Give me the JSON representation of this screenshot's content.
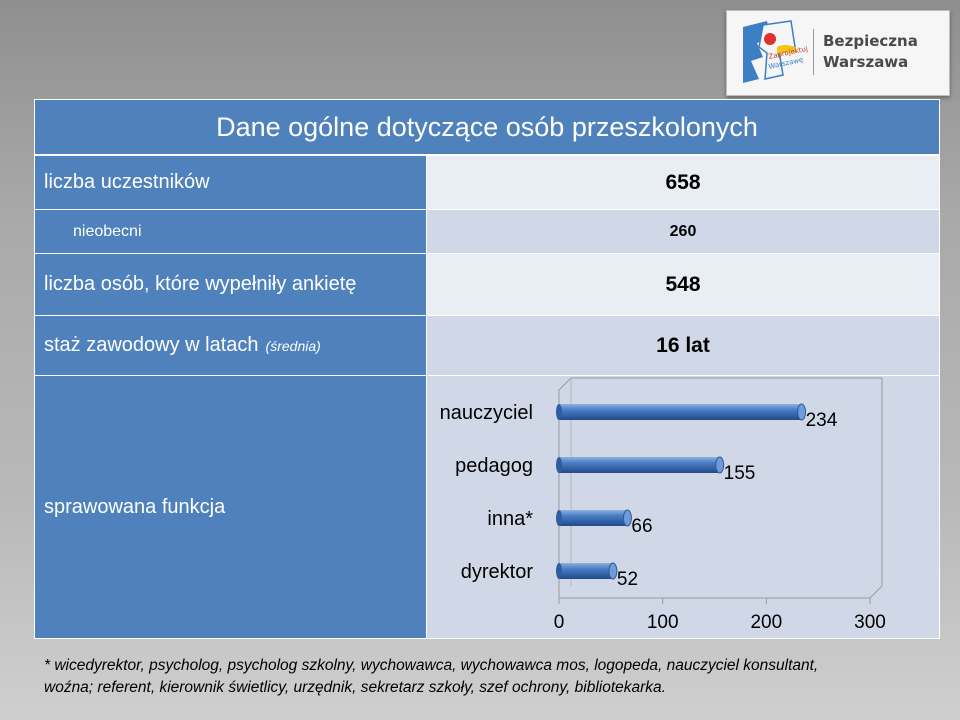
{
  "logo": {
    "line1": "Bezpieczna",
    "line2": "Warszawa",
    "mark_text": "Zaprojektuj Warszawę"
  },
  "title": "Dane ogólne dotyczące osób przeszkolonych",
  "rows": [
    {
      "label": "liczba uczestników",
      "value": "658"
    },
    {
      "label": "nieobecni",
      "value": "260"
    },
    {
      "label": "liczba osób, które wypełniły ankietę",
      "value": "548"
    },
    {
      "label": "staż zawodowy w latach",
      "label_note": "(średnia)",
      "value": "16 lat"
    }
  ],
  "function_label": "sprawowana funkcja",
  "chart_data": {
    "type": "bar",
    "orientation": "horizontal",
    "style": "3d-cylinder",
    "categories": [
      "nauczyciel",
      "pedagog",
      "inna*",
      "dyrektor"
    ],
    "values": [
      234,
      155,
      66,
      52
    ],
    "xlim": [
      0,
      300
    ],
    "x_ticks": [
      "0",
      "100",
      "200",
      "300"
    ],
    "bar_color": "#3a6bb0",
    "grid": false,
    "legend": "none"
  },
  "footnote": {
    "line1": "* wicedyrektor, psycholog, psycholog szkolny, wychowawca, wychowawca mos, logopeda, nauczyciel konsultant,",
    "line2": "woźna; referent, kierownik świetlicy, urzędnik, sekretarz szkoły,  szef ochrony, bibliotekarka."
  },
  "colors": {
    "header": "#4f81bd",
    "row_dark": "#d0d8e8",
    "row_light": "#e9edf4"
  }
}
